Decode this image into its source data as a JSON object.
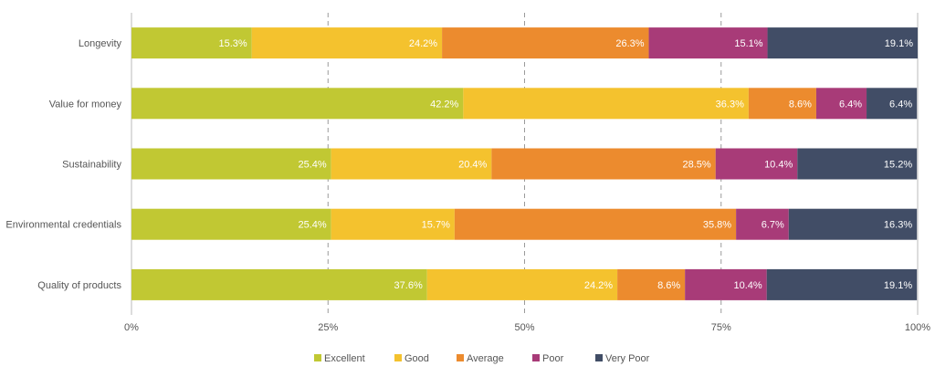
{
  "chart_data": {
    "type": "bar",
    "orientation": "horizontal",
    "stacked": true,
    "title": "",
    "xlabel": "",
    "ylabel": "",
    "xlim": [
      0,
      100
    ],
    "x_ticks": [
      "0%",
      "25%",
      "50%",
      "75%",
      "100%"
    ],
    "grid": "vertical dashed",
    "legend_position": "bottom",
    "categories": [
      "Longevity",
      "Value for money",
      "Sustainability",
      "Environmental credentials",
      "Quality of products"
    ],
    "series": [
      {
        "name": "Excellent",
        "color": "#c1c833",
        "values": [
          15.3,
          42.2,
          25.4,
          25.4,
          37.6
        ],
        "labels": [
          "15.3%",
          "42.2%",
          "25.4%",
          "25.4%",
          "37.6%"
        ]
      },
      {
        "name": "Good",
        "color": "#f4c22e",
        "values": [
          24.2,
          36.3,
          20.4,
          15.7,
          24.2
        ],
        "labels": [
          "24.2%",
          "36.3%",
          "20.4%",
          "15.7%",
          "24.2%"
        ]
      },
      {
        "name": "Average",
        "color": "#ec8b2e",
        "values": [
          26.3,
          8.6,
          28.5,
          35.8,
          8.6
        ],
        "labels": [
          "26.3%",
          "8.6%",
          "28.5%",
          "35.8%",
          "8.6%"
        ]
      },
      {
        "name": "Poor",
        "color": "#a83b78",
        "values": [
          15.1,
          6.4,
          10.4,
          6.7,
          10.4
        ],
        "labels": [
          "15.1%",
          "6.4%",
          "10.4%",
          "6.7%",
          "10.4%"
        ]
      },
      {
        "name": "Very Poor",
        "color": "#414d66",
        "values": [
          19.1,
          6.4,
          15.2,
          16.3,
          19.1
        ],
        "labels": [
          "19.1%",
          "6.4%",
          "15.2%",
          "16.3%",
          "19.1%"
        ]
      }
    ]
  }
}
